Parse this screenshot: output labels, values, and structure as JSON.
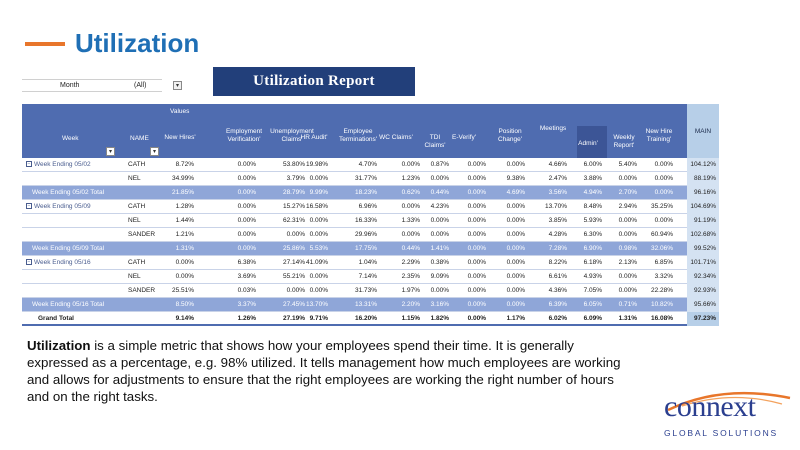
{
  "title": "Utilization",
  "banner": "Utilization Report",
  "filter": {
    "label": "Month",
    "value": "(All)"
  },
  "table": {
    "values_label": "Values",
    "week_header": "Week",
    "name_header": "NAME",
    "main_header": "MAIN",
    "columns": [
      "New Hires'",
      "Employment Verification'",
      "Unemployment Claims'",
      "HR Audit'",
      "Employee Terminations'",
      "WC Claims'",
      "TDI Claims'",
      "E-Verify'",
      "Position Change'",
      "Meetings",
      "Admin'",
      "Weekly Report'",
      "New Hire Training'"
    ],
    "rows": [
      {
        "type": "data",
        "week": "Week Ending 05/02",
        "name": "CATH",
        "vals": [
          "8.72%",
          "0.00%",
          "53.80%",
          "19.98%",
          "4.70%",
          "0.00%",
          "0.87%",
          "0.00%",
          "0.00%",
          "4.66%",
          "6.00%",
          "5.40%",
          "0.00%"
        ],
        "main": "104.12%"
      },
      {
        "type": "data",
        "week": "",
        "name": "NEL",
        "vals": [
          "34.99%",
          "0.00%",
          "3.79%",
          "0.00%",
          "31.77%",
          "1.23%",
          "0.00%",
          "0.00%",
          "9.38%",
          "2.47%",
          "3.88%",
          "0.00%",
          "0.00%"
        ],
        "main": "88.19%"
      },
      {
        "type": "total",
        "week": "Week Ending 05/02 Total",
        "name": "",
        "vals": [
          "21.85%",
          "0.00%",
          "28.79%",
          "9.99%",
          "18.23%",
          "0.62%",
          "0.44%",
          "0.00%",
          "4.69%",
          "3.56%",
          "4.94%",
          "2.70%",
          "0.00%"
        ],
        "main": "96.16%"
      },
      {
        "type": "data",
        "week": "Week Ending 05/09",
        "name": "CATH",
        "vals": [
          "1.28%",
          "0.00%",
          "15.27%",
          "16.58%",
          "6.96%",
          "0.00%",
          "4.23%",
          "0.00%",
          "0.00%",
          "13.70%",
          "8.48%",
          "2.94%",
          "35.25%"
        ],
        "main": "104.69%"
      },
      {
        "type": "data",
        "week": "",
        "name": "NEL",
        "vals": [
          "1.44%",
          "0.00%",
          "62.31%",
          "0.00%",
          "16.33%",
          "1.33%",
          "0.00%",
          "0.00%",
          "0.00%",
          "3.85%",
          "5.93%",
          "0.00%",
          "0.00%"
        ],
        "main": "91.19%"
      },
      {
        "type": "data",
        "week": "",
        "name": "SANDER",
        "vals": [
          "1.21%",
          "0.00%",
          "0.00%",
          "0.00%",
          "29.96%",
          "0.00%",
          "0.00%",
          "0.00%",
          "0.00%",
          "4.28%",
          "6.30%",
          "0.00%",
          "60.94%"
        ],
        "main": "102.68%"
      },
      {
        "type": "total",
        "week": "Week Ending 05/09 Total",
        "name": "",
        "vals": [
          "1.31%",
          "0.00%",
          "25.86%",
          "5.53%",
          "17.75%",
          "0.44%",
          "1.41%",
          "0.00%",
          "0.00%",
          "7.28%",
          "6.90%",
          "0.98%",
          "32.06%"
        ],
        "main": "99.52%"
      },
      {
        "type": "data",
        "week": "Week Ending 05/16",
        "name": "CATH",
        "vals": [
          "0.00%",
          "6.38%",
          "27.14%",
          "41.09%",
          "1.04%",
          "2.29%",
          "0.38%",
          "0.00%",
          "0.00%",
          "8.22%",
          "6.18%",
          "2.13%",
          "6.85%"
        ],
        "main": "101.71%"
      },
      {
        "type": "data",
        "week": "",
        "name": "NEL",
        "vals": [
          "0.00%",
          "3.69%",
          "55.21%",
          "0.00%",
          "7.14%",
          "2.35%",
          "9.09%",
          "0.00%",
          "0.00%",
          "6.61%",
          "4.93%",
          "0.00%",
          "3.32%"
        ],
        "main": "92.34%"
      },
      {
        "type": "data",
        "week": "",
        "name": "SANDER",
        "vals": [
          "25.51%",
          "0.03%",
          "0.00%",
          "0.00%",
          "31.73%",
          "1.97%",
          "0.00%",
          "0.00%",
          "0.00%",
          "4.36%",
          "7.05%",
          "0.00%",
          "22.28%"
        ],
        "main": "92.93%"
      },
      {
        "type": "total",
        "week": "Week Ending 05/16 Total",
        "name": "",
        "vals": [
          "8.50%",
          "3.37%",
          "27.45%",
          "13.70%",
          "13.31%",
          "2.20%",
          "3.16%",
          "0.00%",
          "0.00%",
          "6.39%",
          "6.05%",
          "0.71%",
          "10.82%"
        ],
        "main": "95.66%"
      },
      {
        "type": "grand",
        "week": "Grand Total",
        "name": "",
        "vals": [
          "9.14%",
          "1.26%",
          "27.19%",
          "9.71%",
          "16.20%",
          "1.15%",
          "1.82%",
          "0.00%",
          "1.17%",
          "6.02%",
          "6.09%",
          "1.31%",
          "16.08%"
        ],
        "main": "97.23%"
      }
    ]
  },
  "paragraph": {
    "bold": "Utilization",
    "rest": " is a simple metric that shows how your employees spend their time.  It is generally expressed as a percentage, e.g. 98% utilized. It tells management how much employees are working and allows for adjustments to ensure that the right employees are working the right number of hours and on the right tasks."
  },
  "logo": {
    "name": "connext",
    "sub": "GLOBAL SOLUTIONS",
    "colors": {
      "primary": "#2b3f8f",
      "accent": "#e8762b"
    }
  },
  "colors": {
    "accent": "#e8762b",
    "title": "#1f6fb5",
    "header": "#4f6cb0",
    "banner": "#223f7a"
  }
}
